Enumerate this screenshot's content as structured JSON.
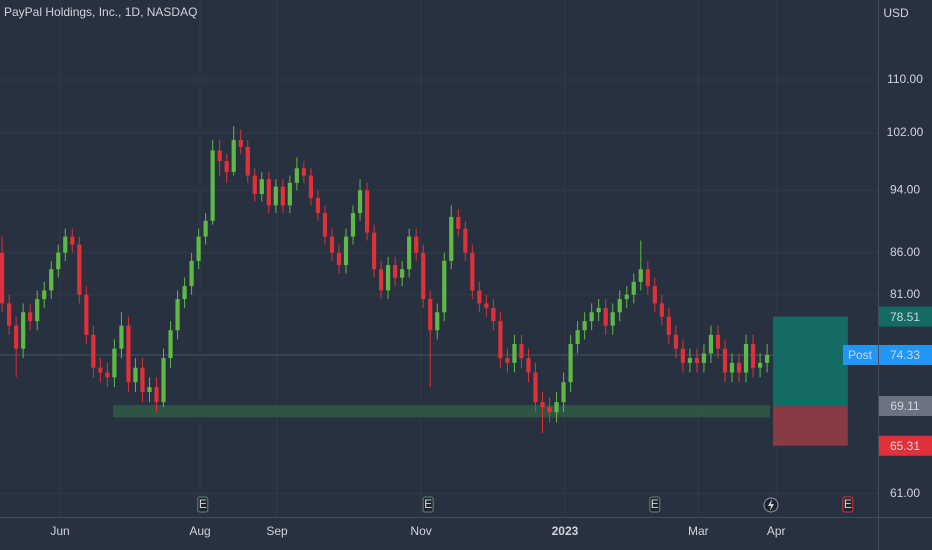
{
  "chart_data": {
    "type": "candlestick",
    "title": "PayPal Holdings, Inc., 1D, NASDAQ",
    "currency": "USD",
    "log_scale": true,
    "grid": true,
    "up_color": "#5fb946",
    "down_color": "#e0313a",
    "ylim": [
      59,
      123.3
    ],
    "yticks": [
      {
        "value": 110,
        "label": "110.00"
      },
      {
        "value": 102,
        "label": "102.00"
      },
      {
        "value": 94,
        "label": "94.00"
      },
      {
        "value": 86,
        "label": "86.00"
      },
      {
        "value": 81,
        "label": "81.00"
      },
      {
        "value": 61,
        "label": "61.00"
      }
    ],
    "xlim": [
      -0.3,
      124.8
    ],
    "xticks": [
      {
        "value": 8.25,
        "label": "Jun"
      },
      {
        "value": 28.2,
        "label": "Aug"
      },
      {
        "value": 39.17,
        "label": "Sep"
      },
      {
        "value": 59.7,
        "label": "Nov"
      },
      {
        "value": 80.2,
        "label": "2023"
      },
      {
        "value": 99.2,
        "label": "Mar"
      },
      {
        "value": 110.3,
        "label": "Apr"
      }
    ],
    "open": [
      86,
      80,
      77.5,
      75,
      79,
      78,
      80.5,
      81.5,
      84,
      86,
      88,
      87,
      81,
      76.5,
      73,
      72.5,
      72,
      75,
      77.5,
      71.5,
      73,
      70.5,
      71,
      69.5,
      74,
      77,
      80.5,
      82,
      85,
      88,
      90,
      99.5,
      98,
      96.5,
      101,
      100,
      96,
      93.5,
      95.5,
      92,
      94.5,
      92,
      95,
      97,
      96,
      93,
      91,
      88,
      86,
      84.5,
      88,
      91,
      94,
      88.5,
      84,
      81.5,
      84.5,
      83,
      84,
      88,
      86,
      80.5,
      77,
      79,
      85,
      90.5,
      89,
      86,
      81.5,
      80,
      79.5,
      78,
      74,
      73.5,
      75.5,
      74,
      72.5,
      69.5,
      69,
      68.5,
      69.5,
      71.5,
      75.5,
      77,
      78,
      79,
      79.5,
      77.5,
      79,
      80.5,
      81,
      82.5,
      84,
      82,
      80,
      78.5,
      76.5,
      75,
      73.5,
      74,
      73.5,
      74.5,
      76.5,
      75,
      72.5,
      73.5,
      72.5,
      75.5,
      73,
      73.5
    ],
    "high": [
      88,
      81,
      78.5,
      80,
      80,
      81.5,
      82.5,
      85,
      87,
      89,
      89,
      88,
      82,
      77.5,
      74,
      73.5,
      76,
      79,
      78.5,
      74,
      74,
      72,
      72,
      75,
      78,
      81.5,
      83,
      86,
      89,
      91,
      101,
      101,
      99,
      103,
      102.5,
      101,
      97,
      96.5,
      96.5,
      95.5,
      95.5,
      96,
      98.5,
      98,
      97,
      94,
      92,
      89,
      87,
      89,
      92,
      95.5,
      95,
      89.5,
      85,
      85.5,
      85.5,
      85,
      89,
      89,
      87,
      81.5,
      80,
      86,
      92,
      91.5,
      90,
      87,
      82.5,
      81,
      80.5,
      79,
      75,
      76.5,
      76.5,
      75,
      73.5,
      70.5,
      70,
      70.5,
      72.5,
      76.5,
      78,
      79,
      80,
      80.5,
      80.5,
      80,
      81.5,
      82,
      83.5,
      87.5,
      85,
      83,
      81,
      79.5,
      77.5,
      76,
      75,
      75,
      75.5,
      77.5,
      77.5,
      76,
      74.5,
      74.5,
      76.5,
      76.5,
      74.5,
      75.5
    ],
    "low": [
      79,
      76.5,
      72,
      74,
      77,
      77,
      79.5,
      80.5,
      83,
      85,
      86,
      80,
      75.5,
      72,
      71.5,
      71,
      71,
      74,
      70.5,
      70.5,
      69.5,
      69.5,
      68.5,
      69,
      73,
      76,
      79.5,
      81,
      84,
      87,
      89.5,
      96,
      95,
      96,
      99,
      95,
      92.5,
      92.5,
      91,
      91,
      91,
      91,
      94,
      95,
      92,
      90,
      87,
      85,
      83.5,
      83.5,
      87,
      90,
      87.5,
      83,
      80.5,
      80.5,
      82,
      82,
      83,
      85,
      79.5,
      71,
      76,
      78,
      84,
      88,
      85,
      80.5,
      79,
      78.5,
      77,
      73,
      72.5,
      72.5,
      73,
      71.5,
      68.5,
      66.5,
      67.5,
      67.5,
      68.5,
      70.5,
      74.5,
      76,
      77,
      78,
      76.5,
      76.5,
      78,
      79.5,
      80,
      81.5,
      81,
      79,
      77.5,
      75.5,
      74,
      72.5,
      72.5,
      72.5,
      72.5,
      73.5,
      74,
      71.5,
      71.5,
      71.5,
      71.5,
      72,
      72,
      72.5
    ],
    "close": [
      80,
      77.5,
      75,
      79,
      78,
      80.5,
      81.5,
      84,
      86,
      88,
      87,
      81,
      76.5,
      73,
      72.5,
      72,
      75,
      77.5,
      71.5,
      73,
      70.5,
      71,
      69.5,
      74,
      77,
      80.5,
      82,
      85,
      88,
      90,
      99.5,
      98,
      96.5,
      101,
      100,
      96,
      93.5,
      95.5,
      92,
      94.5,
      92,
      95,
      97,
      96,
      93,
      91,
      88,
      86,
      84.5,
      88,
      91,
      94,
      88.5,
      84,
      81.5,
      84.5,
      83,
      84,
      88,
      86,
      80.5,
      77,
      79,
      85,
      90.5,
      89,
      86,
      81.5,
      80,
      79.5,
      78,
      74,
      73.5,
      75.5,
      74,
      72.5,
      69.5,
      69,
      68.5,
      69.5,
      71.5,
      75.5,
      77,
      78,
      79,
      79.5,
      77.5,
      79,
      80.5,
      81,
      82.5,
      84,
      82,
      80,
      78.5,
      76.5,
      75,
      73.5,
      74,
      73.5,
      74.5,
      76.5,
      75,
      72.5,
      73.5,
      72.5,
      75.5,
      73,
      73.5,
      74.33
    ],
    "last_price": 74.33,
    "last_price_label": "Post",
    "support_zone": {
      "low": 68,
      "high": 69.2,
      "start": 15.8,
      "end": 109.4,
      "color": "#2f5a45"
    },
    "position": {
      "target": 78.51,
      "entry": 69.11,
      "stop": 65.31,
      "start": 109.85,
      "end": 120.5,
      "profit_color": "#136b64",
      "loss_color": "#8a3a42"
    },
    "events": [
      {
        "x": 28.6,
        "label": "E",
        "color": "#5a8a72"
      },
      {
        "x": 60.7,
        "label": "E",
        "color": "#5a8a72"
      },
      {
        "x": 93.0,
        "label": "E",
        "color": "#5a8a72"
      },
      {
        "x": 120.5,
        "label": "E",
        "color": "#e0313a"
      }
    ]
  }
}
